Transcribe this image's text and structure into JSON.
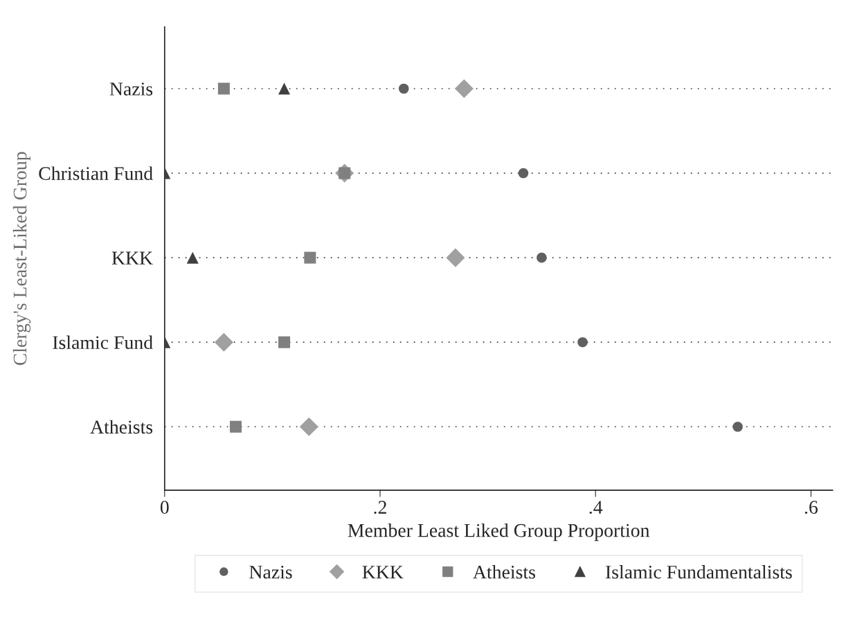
{
  "chart_data": {
    "type": "scatter",
    "orientation": "horizontal",
    "xlabel": "Member Least Liked Group Proportion",
    "ylabel": "Clergy's Least-Liked Group",
    "categories": [
      "Nazis",
      "Christian Fund",
      "KKK",
      "Islamic Fund",
      "Atheists"
    ],
    "series": [
      {
        "name": "Nazis",
        "color": "#606060",
        "marker": "circle",
        "values": [
          0.222,
          0.333,
          0.35,
          0.388,
          0.532
        ]
      },
      {
        "name": "KKK",
        "color": "#a0a0a0",
        "marker": "diamond",
        "values": [
          0.278,
          0.167,
          0.27,
          0.055,
          0.134
        ]
      },
      {
        "name": "Atheists",
        "color": "#808080",
        "marker": "square",
        "values": [
          0.055,
          0.167,
          0.135,
          0.111,
          0.066
        ]
      },
      {
        "name": "Islamic Fundamentalists",
        "color": "#404040",
        "marker": "triangle",
        "values": [
          0.111,
          0,
          0.026,
          0,
          null
        ]
      }
    ],
    "xlim": [
      0,
      0.62
    ],
    "xticks": [
      0,
      {
        "value": 0.2,
        "label": ".2"
      },
      {
        "value": 0.4,
        "label": ".4"
      },
      {
        "value": 0.6,
        "label": ".6"
      }
    ],
    "grid": "y",
    "legend": "bottom"
  }
}
